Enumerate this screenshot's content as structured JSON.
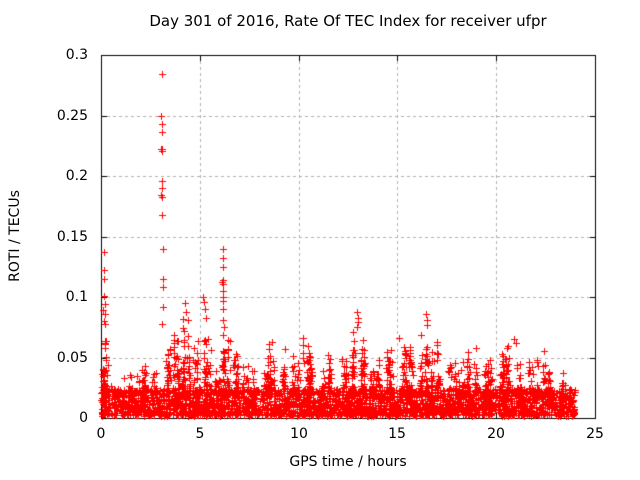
{
  "chart_data": {
    "type": "scatter",
    "title": "Day 301 of 2016, Rate Of TEC Index for receiver ufpr",
    "xlabel": "GPS time / hours",
    "ylabel": "ROTI / TECUs",
    "xlim": [
      0,
      25
    ],
    "ylim": [
      0,
      0.3
    ],
    "xticks": [
      0,
      5,
      10,
      15,
      20,
      25
    ],
    "xtick_labels": [
      "0",
      "5",
      "10",
      "15",
      "20",
      "25"
    ],
    "yticks": [
      0,
      0.05,
      0.1,
      0.15,
      0.2,
      0.25,
      0.3
    ],
    "ytick_labels": [
      "0",
      "0.05",
      "0.1",
      "0.15",
      "0.2",
      "0.25",
      "0.3"
    ],
    "grid": true,
    "legend": "none",
    "marker": "plus",
    "marker_size_px": 7,
    "marker_color": "#ff0000",
    "grid_color": "#b0b0b0",
    "axis_color": "#000000",
    "background_color": "#ffffff",
    "description": "Dense ROTI scatter: solid band 0.003-0.025 TECU across 0-24h, moderate activity to ~0.05-0.07, isolated spikes listed in outliers. No data 24-25h.",
    "outliers": [
      [
        0.13,
        0.137
      ],
      [
        0.15,
        0.122
      ],
      [
        0.14,
        0.115
      ],
      [
        0.16,
        0.101
      ],
      [
        0.18,
        0.094
      ],
      [
        0.12,
        0.089
      ],
      [
        0.2,
        0.086
      ],
      [
        0.17,
        0.08
      ],
      [
        0.22,
        0.078
      ],
      [
        3.07,
        0.284
      ],
      [
        3.05,
        0.25
      ],
      [
        3.07,
        0.243
      ],
      [
        3.07,
        0.236
      ],
      [
        3.03,
        0.222
      ],
      [
        3.07,
        0.222
      ],
      [
        3.1,
        0.221
      ],
      [
        3.07,
        0.196
      ],
      [
        3.07,
        0.19
      ],
      [
        3.04,
        0.184
      ],
      [
        3.09,
        0.183
      ],
      [
        3.07,
        0.168
      ],
      [
        3.12,
        0.14
      ],
      [
        3.14,
        0.115
      ],
      [
        3.12,
        0.108
      ],
      [
        3.16,
        0.092
      ],
      [
        3.1,
        0.078
      ],
      [
        4.25,
        0.095
      ],
      [
        4.3,
        0.088
      ],
      [
        5.18,
        0.1
      ],
      [
        5.22,
        0.096
      ],
      [
        5.25,
        0.09
      ],
      [
        5.3,
        0.083
      ],
      [
        6.15,
        0.14
      ],
      [
        6.17,
        0.132
      ],
      [
        6.15,
        0.125
      ],
      [
        6.16,
        0.114
      ],
      [
        6.14,
        0.112
      ],
      [
        6.18,
        0.111
      ],
      [
        6.17,
        0.105
      ],
      [
        6.15,
        0.1
      ],
      [
        6.19,
        0.097
      ],
      [
        6.16,
        0.09
      ],
      [
        8.65,
        0.063
      ],
      [
        9.3,
        0.057
      ],
      [
        10.2,
        0.066
      ],
      [
        11.5,
        0.052
      ],
      [
        12.98,
        0.088
      ],
      [
        13.0,
        0.083
      ],
      [
        13.02,
        0.079
      ],
      [
        12.96,
        0.075
      ],
      [
        15.1,
        0.066
      ],
      [
        16.45,
        0.086
      ],
      [
        16.48,
        0.081
      ],
      [
        16.52,
        0.077
      ],
      [
        17.0,
        0.063
      ],
      [
        19.0,
        0.058
      ],
      [
        20.9,
        0.065
      ],
      [
        21.0,
        0.062
      ],
      [
        22.4,
        0.055
      ]
    ],
    "band_bins": {
      "start": 0,
      "width_hours": 0.5,
      "envelope_max": [
        0.075,
        0.028,
        0.042,
        0.036,
        0.048,
        0.045,
        0.062,
        0.07,
        0.09,
        0.066,
        0.08,
        0.046,
        0.085,
        0.06,
        0.046,
        0.044,
        0.052,
        0.063,
        0.047,
        0.056,
        0.065,
        0.055,
        0.042,
        0.052,
        0.058,
        0.073,
        0.075,
        0.052,
        0.062,
        0.058,
        0.068,
        0.062,
        0.072,
        0.065,
        0.063,
        0.052,
        0.052,
        0.058,
        0.05,
        0.052,
        0.058,
        0.063,
        0.055,
        0.048,
        0.054,
        0.042,
        0.038,
        0.024,
        0,
        0
      ]
    },
    "base_band": {
      "min": 0.002,
      "max": 0.024
    },
    "seed": 301
  }
}
